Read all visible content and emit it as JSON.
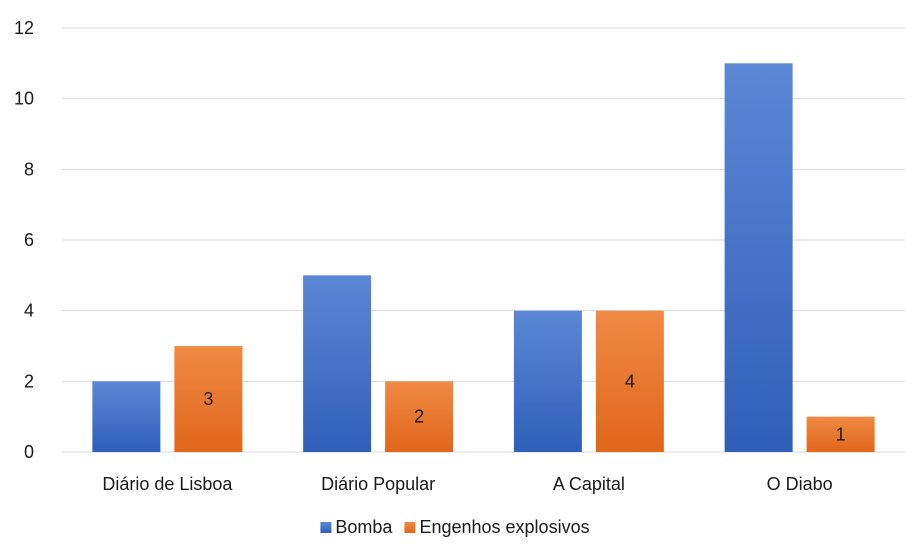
{
  "chart_data": {
    "type": "bar",
    "categories": [
      "Diário de Lisboa",
      "Diário Popular",
      "A Capital",
      "O Diabo"
    ],
    "series": [
      {
        "name": "Bomba",
        "values": [
          2,
          5,
          4,
          11
        ],
        "color": "#4472C4",
        "color_light": "#5B87D6",
        "color_dark": "#2F5FB8",
        "data_labels": false
      },
      {
        "name": "Engenhos explosivos",
        "values": [
          3,
          2,
          4,
          1
        ],
        "color": "#ED7D31",
        "color_light": "#F08A45",
        "color_dark": "#E0661A",
        "data_labels": true
      }
    ],
    "ylim": [
      0,
      12
    ],
    "yticks": [
      0,
      2,
      4,
      6,
      8,
      10,
      12
    ],
    "grid": true,
    "legend_position": "bottom",
    "title": "",
    "xlabel": "",
    "ylabel": ""
  }
}
